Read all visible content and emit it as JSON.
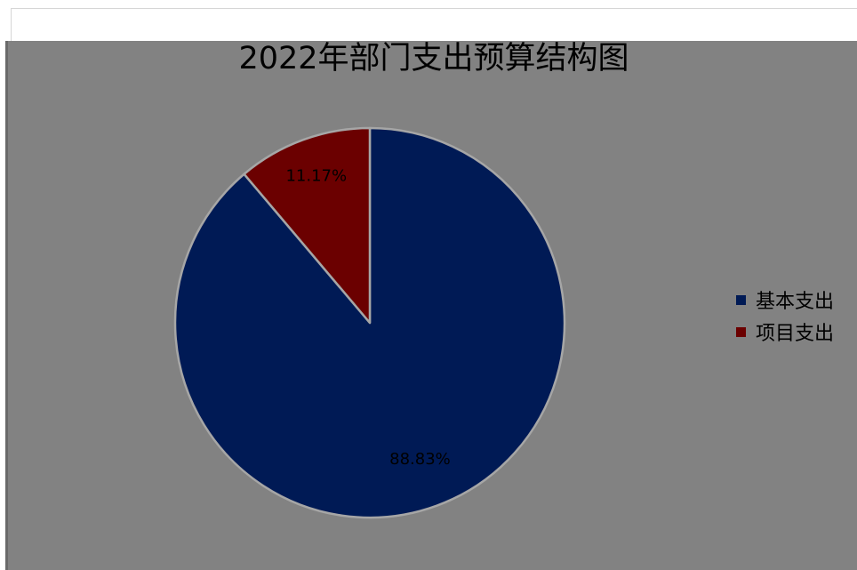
{
  "chart_data": {
    "type": "pie",
    "title": "2022年部门支出预算结构图",
    "slices": [
      {
        "name": "基本支出",
        "value": 88.83,
        "label": "88.83%",
        "color": "#001a55"
      },
      {
        "name": "项目支出",
        "value": 11.17,
        "label": "11.17%",
        "color": "#6b0000"
      }
    ],
    "legend_position": "right",
    "background_color": "#828282",
    "slice_border_color": "#a6a6a6"
  }
}
